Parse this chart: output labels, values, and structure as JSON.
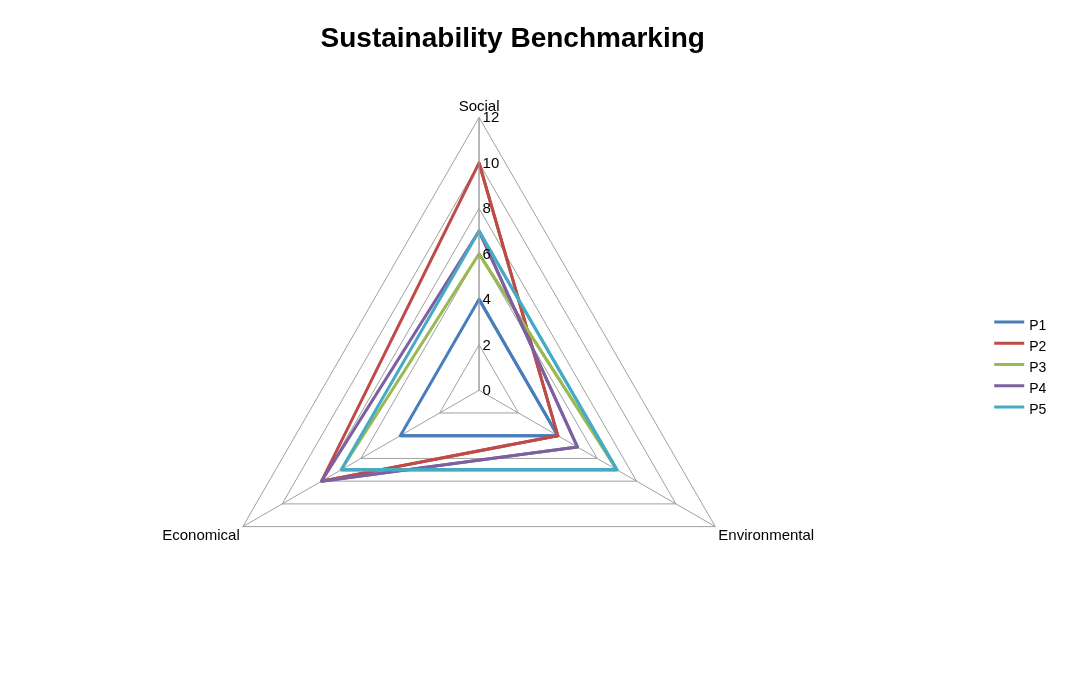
{
  "chart_data": {
    "type": "radar",
    "title": "Sustainability Benchmarking",
    "categories": [
      "Social",
      "Environmental",
      "Economical"
    ],
    "series": [
      {
        "name": "P1",
        "color": "#4a7ebb",
        "values": [
          4,
          4,
          4
        ]
      },
      {
        "name": "P2",
        "color": "#be4b48",
        "values": [
          10,
          4,
          8
        ]
      },
      {
        "name": "P3",
        "color": "#98b954",
        "values": [
          6,
          7,
          7
        ]
      },
      {
        "name": "P4",
        "color": "#7d60a0",
        "values": [
          7,
          5,
          8
        ]
      },
      {
        "name": "P5",
        "color": "#46aac5",
        "values": [
          7,
          7,
          7
        ]
      }
    ],
    "ylim": [
      0,
      12
    ],
    "yticks": [
      0,
      2,
      4,
      6,
      8,
      10,
      12
    ],
    "grid": true,
    "legend": "right",
    "marker": "none",
    "line_style": "solid"
  }
}
